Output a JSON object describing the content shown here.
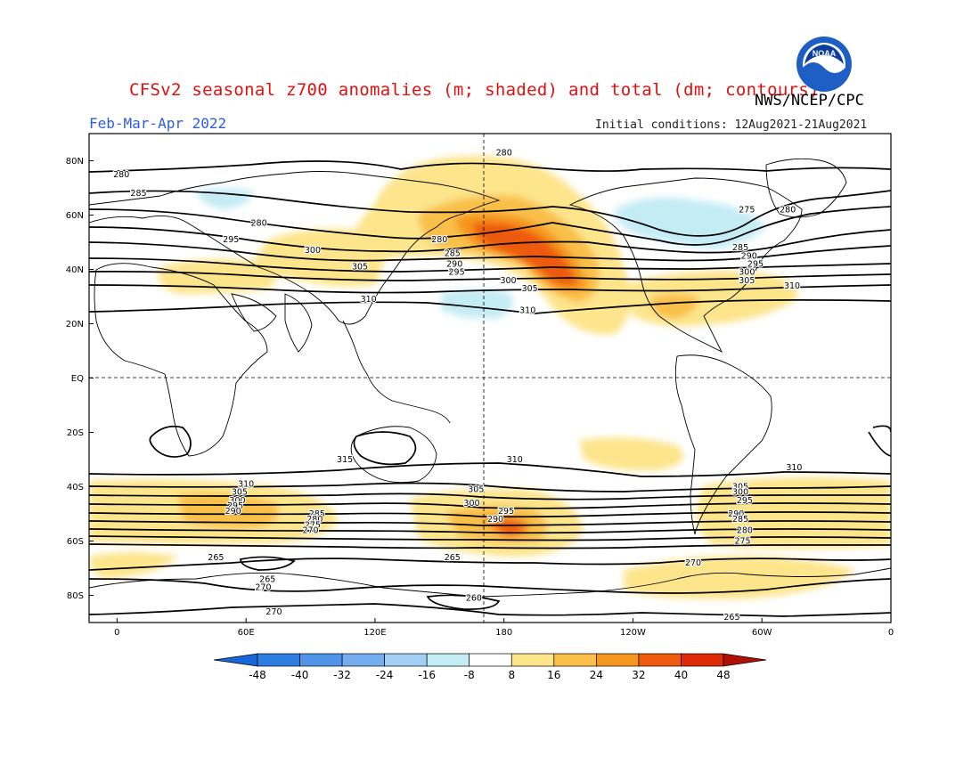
{
  "header": {
    "title": "CFSv2 seasonal z700 anomalies (m; shaded) and total (dm; contours)",
    "org": "NWS/NCEP/CPC",
    "period": "Feb-Mar-Apr 2022",
    "init": "Initial conditions: 12Aug2021-21Aug2021",
    "logo_text": "NOAA"
  },
  "axes": {
    "lat_labels": [
      "80N",
      "60N",
      "40N",
      "20N",
      "EQ",
      "20S",
      "40S",
      "60S",
      "80S"
    ],
    "lon_labels": [
      "0",
      "60E",
      "120E",
      "180",
      "120W",
      "60W",
      "0"
    ]
  },
  "colorbar": {
    "ticks": [
      "-48",
      "-40",
      "-32",
      "-24",
      "-16",
      "-8",
      "8",
      "16",
      "24",
      "32",
      "40",
      "48"
    ],
    "colors": {
      "lt_-48": "#1a66d6",
      "-48_-40": "#2e7de0",
      "-40_-32": "#4f94e6",
      "-32_-24": "#74aef0",
      "-24_-16": "#a0d0f5",
      "-16_-8": "#c4ecf5",
      "-8_8": "#ffffff",
      "8_16": "#fde58c",
      "16_24": "#f9c04a",
      "24_32": "#f5961e",
      "32_40": "#ee5a10",
      "40_48": "#de2a06",
      "gt_48": "#b01004"
    }
  },
  "contour_labels": [
    {
      "text": "280",
      "lon": 180,
      "lat": 82
    },
    {
      "text": "280",
      "lon": 2,
      "lat": 74
    },
    {
      "text": "285",
      "lon": 10,
      "lat": 67
    },
    {
      "text": "280",
      "lon": 66,
      "lat": 56
    },
    {
      "text": "295",
      "lon": 53,
      "lat": 50
    },
    {
      "text": "300",
      "lon": 91,
      "lat": 46
    },
    {
      "text": "305",
      "lon": 113,
      "lat": 40
    },
    {
      "text": "310",
      "lon": 117,
      "lat": 28
    },
    {
      "text": "280",
      "lon": 150,
      "lat": 50
    },
    {
      "text": "285",
      "lon": 156,
      "lat": 45
    },
    {
      "text": "290",
      "lon": 157,
      "lat": 41
    },
    {
      "text": "295",
      "lon": 158,
      "lat": 38
    },
    {
      "text": "305",
      "lon": -168,
      "lat": 32
    },
    {
      "text": "300",
      "lon": -178,
      "lat": 35
    },
    {
      "text": "310",
      "lon": -169,
      "lat": 24
    },
    {
      "text": "275",
      "lon": -67,
      "lat": 61
    },
    {
      "text": "280",
      "lon": -48,
      "lat": 61
    },
    {
      "text": "285",
      "lon": -70,
      "lat": 47
    },
    {
      "text": "290",
      "lon": -66,
      "lat": 44
    },
    {
      "text": "295",
      "lon": -63,
      "lat": 41
    },
    {
      "text": "300",
      "lon": -67,
      "lat": 38
    },
    {
      "text": "305",
      "lon": -67,
      "lat": 35
    },
    {
      "text": "310",
      "lon": -46,
      "lat": 33
    },
    {
      "text": "315",
      "lon": 106,
      "lat": -31
    },
    {
      "text": "310",
      "lon": -175,
      "lat": -31
    },
    {
      "text": "310",
      "lon": -45,
      "lat": -34
    },
    {
      "text": "310",
      "lon": 60,
      "lat": -40
    },
    {
      "text": "305",
      "lon": 57,
      "lat": -43
    },
    {
      "text": "300",
      "lon": 56,
      "lat": -46
    },
    {
      "text": "295",
      "lon": 55,
      "lat": -48
    },
    {
      "text": "290",
      "lon": 54,
      "lat": -50
    },
    {
      "text": "305",
      "lon": 167,
      "lat": -42
    },
    {
      "text": "300",
      "lon": 165,
      "lat": -47
    },
    {
      "text": "295",
      "lon": -179,
      "lat": -50
    },
    {
      "text": "290",
      "lon": 176,
      "lat": -53
    },
    {
      "text": "285",
      "lon": 93,
      "lat": -51
    },
    {
      "text": "280",
      "lon": 92,
      "lat": -53
    },
    {
      "text": "275",
      "lon": 91,
      "lat": -55
    },
    {
      "text": "270",
      "lon": 90,
      "lat": -57
    },
    {
      "text": "305",
      "lon": -70,
      "lat": -41
    },
    {
      "text": "300",
      "lon": -70,
      "lat": -43
    },
    {
      "text": "295",
      "lon": -68,
      "lat": -46
    },
    {
      "text": "290",
      "lon": -72,
      "lat": -51
    },
    {
      "text": "285",
      "lon": -70,
      "lat": -53
    },
    {
      "text": "280",
      "lon": -68,
      "lat": -57
    },
    {
      "text": "275",
      "lon": -69,
      "lat": -61
    },
    {
      "text": "270",
      "lon": -92,
      "lat": -69
    },
    {
      "text": "265",
      "lon": 46,
      "lat": -67
    },
    {
      "text": "265",
      "lon": 70,
      "lat": -75
    },
    {
      "text": "270",
      "lon": 68,
      "lat": -78
    },
    {
      "text": "270",
      "lon": 73,
      "lat": -87
    },
    {
      "text": "265",
      "lon": 156,
      "lat": -67
    },
    {
      "text": "260",
      "lon": 166,
      "lat": -82
    },
    {
      "text": "265",
      "lon": -74,
      "lat": -89
    }
  ]
}
